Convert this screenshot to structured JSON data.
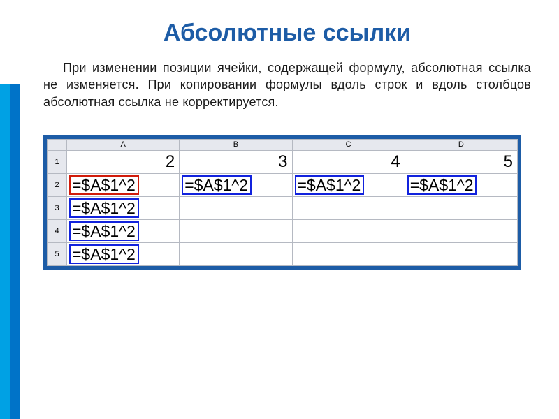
{
  "colors": {
    "title": "#1d5ca6",
    "text": "#1a1a1a",
    "outer_border": "#1d5ca6",
    "grid_border": "#b5b9c2",
    "header_bg": "#e6e8ee",
    "rownum_bg": "#e6e8ee",
    "box_red": "#d11b0a",
    "box_blue": "#1122dd",
    "stripe1": "#00a1e4",
    "stripe2": "#0073c8",
    "stripe3": "#ffffff"
  },
  "title": "Абсолютные ссылки",
  "paragraph": "При изменении позиции ячейки, содержащей формулу, абсолютная ссылка не изменяется. При копировании формулы вдоль строк и вдоль столбцов абсолютная ссылка не корректируется.",
  "sheet": {
    "columns": [
      "A",
      "B",
      "C",
      "D"
    ],
    "rows": [
      {
        "num": "1",
        "cells": [
          {
            "kind": "val",
            "text": "2"
          },
          {
            "kind": "val",
            "text": "3"
          },
          {
            "kind": "val",
            "text": "4"
          },
          {
            "kind": "val",
            "text": "5"
          }
        ]
      },
      {
        "num": "2",
        "cells": [
          {
            "kind": "formula",
            "text": "=$A$1^2",
            "box": "red"
          },
          {
            "kind": "formula",
            "text": "=$A$1^2",
            "box": "blue"
          },
          {
            "kind": "formula",
            "text": "=$A$1^2",
            "box": "blue"
          },
          {
            "kind": "formula",
            "text": "=$A$1^2",
            "box": "blue"
          }
        ]
      },
      {
        "num": "3",
        "cells": [
          {
            "kind": "formula",
            "text": "=$A$1^2",
            "box": "blue"
          },
          {
            "kind": "empty"
          },
          {
            "kind": "empty"
          },
          {
            "kind": "empty"
          }
        ]
      },
      {
        "num": "4",
        "cells": [
          {
            "kind": "formula",
            "text": "=$A$1^2",
            "box": "blue"
          },
          {
            "kind": "empty"
          },
          {
            "kind": "empty"
          },
          {
            "kind": "empty"
          }
        ]
      },
      {
        "num": "5",
        "cells": [
          {
            "kind": "formula",
            "text": "=$A$1^2",
            "box": "blue"
          },
          {
            "kind": "empty"
          },
          {
            "kind": "empty"
          },
          {
            "kind": "empty"
          }
        ]
      }
    ]
  }
}
